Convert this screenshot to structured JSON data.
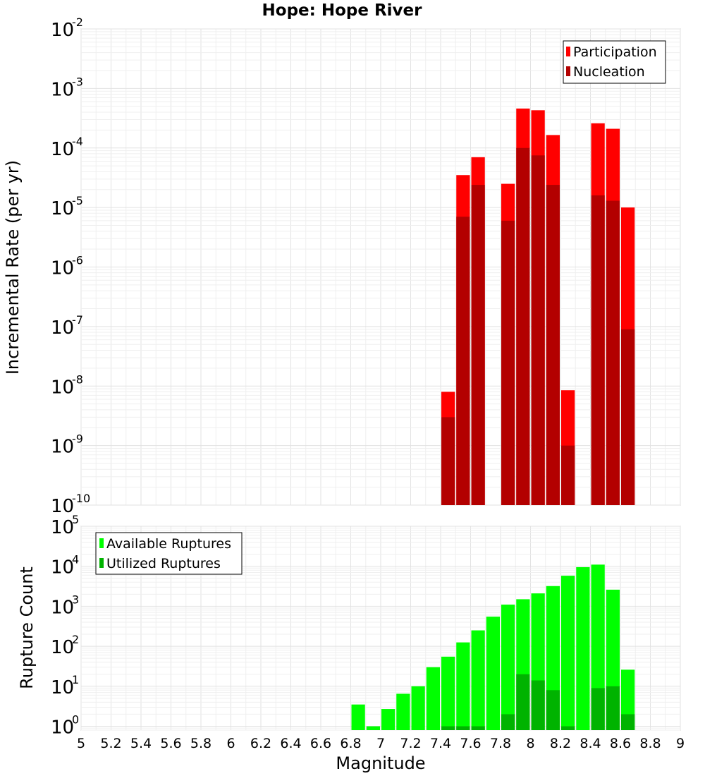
{
  "chart_data": [
    {
      "type": "bar",
      "title": "Hope: Hope River",
      "xlabel": "",
      "ylabel": "Incremental Rate (per yr)",
      "xlim": [
        5,
        9
      ],
      "ylim": [
        1e-10,
        0.01
      ],
      "yscale": "log",
      "ytick_exponents": [
        "-10",
        "-9",
        "-8",
        "-7",
        "-6",
        "-5",
        "-4",
        "-3",
        "-2"
      ],
      "ytick_base": "10",
      "grid": true,
      "legend_position": "top-right",
      "bar_width": 0.1,
      "series": [
        {
          "name": "Participation",
          "color": "#ff0000",
          "points": [
            {
              "x": 7.45,
              "y": 8e-09
            },
            {
              "x": 7.55,
              "y": 3.5e-05
            },
            {
              "x": 7.65,
              "y": 7e-05
            },
            {
              "x": 7.85,
              "y": 2.5e-05
            },
            {
              "x": 7.95,
              "y": 0.00046
            },
            {
              "x": 8.05,
              "y": 0.00043
            },
            {
              "x": 8.15,
              "y": 0.000165
            },
            {
              "x": 8.25,
              "y": 8.5e-09
            },
            {
              "x": 8.45,
              "y": 0.00026
            },
            {
              "x": 8.55,
              "y": 0.00021
            },
            {
              "x": 8.65,
              "y": 1e-05
            }
          ]
        },
        {
          "name": "Nucleation",
          "color": "#b30000",
          "points": [
            {
              "x": 7.45,
              "y": 3e-09
            },
            {
              "x": 7.55,
              "y": 7e-06
            },
            {
              "x": 7.65,
              "y": 2.4e-05
            },
            {
              "x": 7.85,
              "y": 6e-06
            },
            {
              "x": 7.95,
              "y": 0.0001
            },
            {
              "x": 8.05,
              "y": 7.5e-05
            },
            {
              "x": 8.15,
              "y": 2.4e-05
            },
            {
              "x": 8.25,
              "y": 1e-09
            },
            {
              "x": 8.45,
              "y": 1.6e-05
            },
            {
              "x": 8.55,
              "y": 1.3e-05
            },
            {
              "x": 8.65,
              "y": 9e-08
            }
          ]
        }
      ]
    },
    {
      "type": "bar",
      "title": "",
      "xlabel": "Magnitude",
      "ylabel": "Rupture Count",
      "xlim": [
        5,
        9
      ],
      "ylim": [
        0.8,
        100000.0
      ],
      "yscale": "log",
      "ytick_exponents": [
        "0",
        "1",
        "2",
        "3",
        "4",
        "5"
      ],
      "ytick_base": "10",
      "xticks": [
        "5",
        "5.2",
        "5.4",
        "5.6",
        "5.8",
        "6",
        "6.2",
        "6.4",
        "6.6",
        "6.8",
        "7",
        "7.2",
        "7.4",
        "7.6",
        "7.8",
        "8",
        "8.2",
        "8.4",
        "8.6",
        "8.8",
        "9"
      ],
      "grid": true,
      "legend_position": "top-left",
      "bar_width": 0.1,
      "series": [
        {
          "name": "Available Ruptures",
          "color": "#00ff00",
          "points": [
            {
              "x": 6.85,
              "y": 3.5
            },
            {
              "x": 6.95,
              "y": 1
            },
            {
              "x": 7.05,
              "y": 2.7
            },
            {
              "x": 7.15,
              "y": 6.5
            },
            {
              "x": 7.25,
              "y": 10
            },
            {
              "x": 7.35,
              "y": 30
            },
            {
              "x": 7.45,
              "y": 55
            },
            {
              "x": 7.55,
              "y": 125
            },
            {
              "x": 7.65,
              "y": 250
            },
            {
              "x": 7.75,
              "y": 550
            },
            {
              "x": 7.85,
              "y": 1100
            },
            {
              "x": 7.95,
              "y": 1500
            },
            {
              "x": 8.05,
              "y": 2100
            },
            {
              "x": 8.15,
              "y": 3200
            },
            {
              "x": 8.25,
              "y": 5800
            },
            {
              "x": 8.35,
              "y": 9500
            },
            {
              "x": 8.45,
              "y": 11000
            },
            {
              "x": 8.55,
              "y": 2600
            },
            {
              "x": 8.65,
              "y": 26
            }
          ]
        },
        {
          "name": "Utilized Ruptures",
          "color": "#00b300",
          "points": [
            {
              "x": 7.45,
              "y": 1
            },
            {
              "x": 7.55,
              "y": 1
            },
            {
              "x": 7.65,
              "y": 1
            },
            {
              "x": 7.85,
              "y": 2
            },
            {
              "x": 7.95,
              "y": 20
            },
            {
              "x": 8.05,
              "y": 14
            },
            {
              "x": 8.15,
              "y": 8
            },
            {
              "x": 8.25,
              "y": 1
            },
            {
              "x": 8.45,
              "y": 9
            },
            {
              "x": 8.55,
              "y": 10
            },
            {
              "x": 8.65,
              "y": 2
            }
          ]
        }
      ]
    }
  ]
}
